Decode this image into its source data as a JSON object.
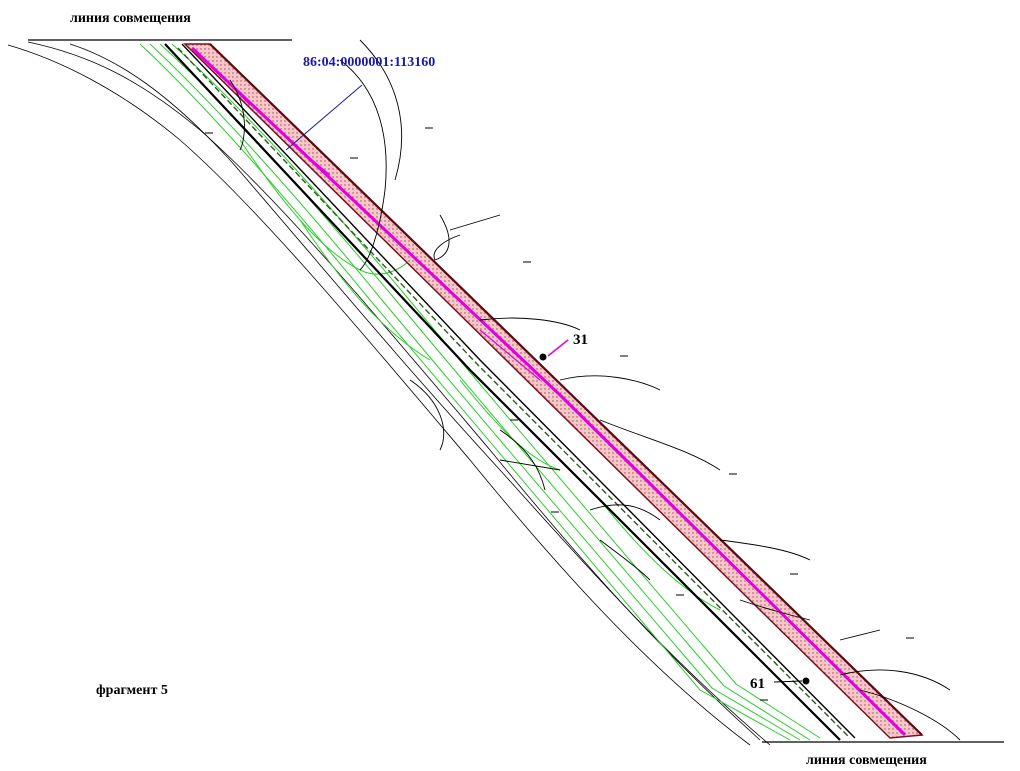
{
  "labels": {
    "alignment_line_top": "линия совмещения",
    "alignment_line_bottom": "линия совмещения",
    "cadastral_number": "86:04:0000001:113160",
    "fragment": "фрагмент 5",
    "point_31": "31",
    "point_61": "61"
  },
  "colors": {
    "strip_fill": "#f2b8b8",
    "strip_border": "#7a1020",
    "magenta": "#e000e0",
    "green": "#2ecc2e",
    "dark_green": "#2a5d1a",
    "cadastral_text": "#1a1aa0",
    "line": "#000000"
  }
}
